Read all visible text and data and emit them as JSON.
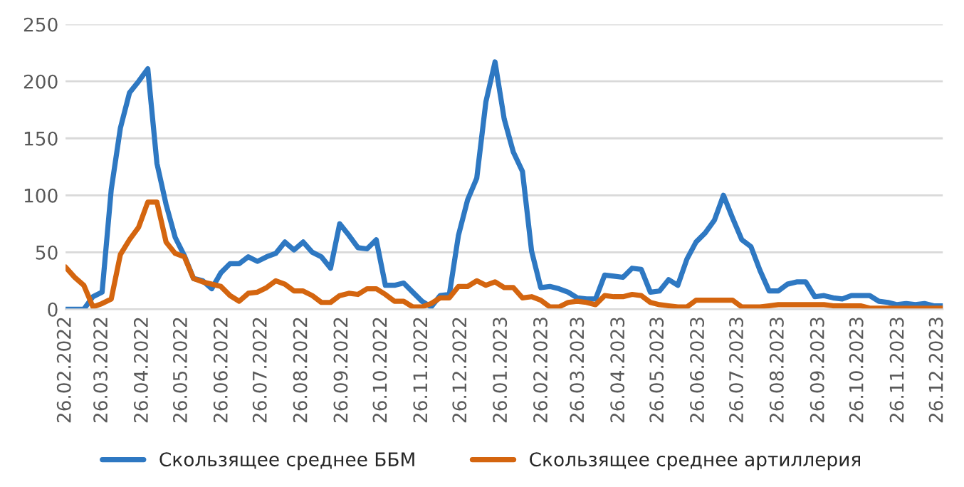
{
  "chart_data": {
    "type": "line",
    "x": [
      "2022-02-26",
      "2022-03-05",
      "2022-03-12",
      "2022-03-19",
      "2022-03-26",
      "2022-04-02",
      "2022-04-09",
      "2022-04-16",
      "2022-04-23",
      "2022-04-30",
      "2022-05-07",
      "2022-05-14",
      "2022-05-21",
      "2022-05-28",
      "2022-06-04",
      "2022-06-11",
      "2022-06-18",
      "2022-06-25",
      "2022-07-02",
      "2022-07-09",
      "2022-07-16",
      "2022-07-23",
      "2022-07-30",
      "2022-08-06",
      "2022-08-13",
      "2022-08-20",
      "2022-08-27",
      "2022-09-03",
      "2022-09-10",
      "2022-09-17",
      "2022-09-24",
      "2022-10-01",
      "2022-10-08",
      "2022-10-15",
      "2022-10-22",
      "2022-10-29",
      "2022-11-05",
      "2022-11-12",
      "2022-11-19",
      "2022-11-26",
      "2022-12-03",
      "2022-12-10",
      "2022-12-17",
      "2022-12-24",
      "2022-12-31",
      "2023-01-07",
      "2023-01-14",
      "2023-01-21",
      "2023-01-28",
      "2023-02-04",
      "2023-02-11",
      "2023-02-18",
      "2023-02-25",
      "2023-03-04",
      "2023-03-11",
      "2023-03-18",
      "2023-03-25",
      "2023-04-01",
      "2023-04-08",
      "2023-04-15",
      "2023-04-22",
      "2023-04-29",
      "2023-05-06",
      "2023-05-13",
      "2023-05-20",
      "2023-05-27",
      "2023-06-03",
      "2023-06-10",
      "2023-06-17",
      "2023-06-24",
      "2023-07-01",
      "2023-07-08",
      "2023-07-15",
      "2023-07-22",
      "2023-07-29",
      "2023-08-05",
      "2023-08-12",
      "2023-08-19",
      "2023-08-26",
      "2023-09-02",
      "2023-09-09",
      "2023-09-16",
      "2023-09-23",
      "2023-09-30",
      "2023-10-07",
      "2023-10-14",
      "2023-10-21",
      "2023-10-28",
      "2023-11-04",
      "2023-11-11",
      "2023-11-18",
      "2023-11-25",
      "2023-12-02",
      "2023-12-09",
      "2023-12-16",
      "2023-12-23",
      "2023-12-30"
    ],
    "series": [
      {
        "name": "Скользящее среднее ББМ",
        "color": "#2e78c2",
        "values": [
          0,
          0,
          0,
          11,
          15,
          105,
          159,
          190,
          200,
          211,
          128,
          92,
          63,
          47,
          27,
          25,
          18,
          32,
          40,
          40,
          46,
          42,
          46,
          49,
          59,
          52,
          59,
          50,
          46,
          36,
          75,
          65,
          54,
          53,
          61,
          21,
          21,
          23,
          15,
          7,
          2,
          12,
          13,
          65,
          96,
          115,
          182,
          217,
          167,
          138,
          121,
          51,
          19,
          20,
          18,
          15,
          10,
          9,
          9,
          30,
          29,
          28,
          36,
          35,
          15,
          16,
          26,
          21,
          44,
          59,
          67,
          78,
          100,
          80,
          61,
          55,
          34,
          16,
          16,
          22,
          24,
          24,
          11,
          12,
          10,
          9,
          12,
          12,
          12,
          7,
          6,
          4,
          5,
          4,
          5,
          3,
          3
        ]
      },
      {
        "name": "Скользящее среднее артиллерия",
        "color": "#d4650f",
        "values": [
          37,
          28,
          21,
          2,
          5,
          9,
          48,
          61,
          72,
          94,
          94,
          59,
          49,
          46,
          27,
          24,
          22,
          20,
          12,
          7,
          14,
          15,
          19,
          25,
          22,
          16,
          16,
          12,
          6,
          6,
          12,
          14,
          13,
          18,
          18,
          13,
          7,
          7,
          2,
          2,
          5,
          10,
          10,
          20,
          20,
          25,
          21,
          24,
          19,
          19,
          10,
          11,
          8,
          2,
          2,
          6,
          7,
          6,
          4,
          12,
          11,
          11,
          13,
          12,
          6,
          4,
          3,
          2,
          2,
          8,
          8,
          8,
          8,
          8,
          2,
          2,
          2,
          3,
          4,
          4,
          4,
          4,
          4,
          4,
          3,
          3,
          3,
          3,
          1,
          1,
          1,
          1,
          1,
          1,
          1,
          1,
          1
        ]
      }
    ],
    "xlim": [
      "2022-02-26",
      "2023-12-30"
    ],
    "xticks": [
      {
        "value": "2022-02-26",
        "label": "26.02.2022"
      },
      {
        "value": "2022-03-26",
        "label": "26.03.2022"
      },
      {
        "value": "2022-04-26",
        "label": "26.04.2022"
      },
      {
        "value": "2022-05-26",
        "label": "26.05.2022"
      },
      {
        "value": "2022-06-26",
        "label": "26.06.2022"
      },
      {
        "value": "2022-07-26",
        "label": "26.07.2022"
      },
      {
        "value": "2022-08-26",
        "label": "26.08.2022"
      },
      {
        "value": "2022-09-26",
        "label": "26.09.2022"
      },
      {
        "value": "2022-10-26",
        "label": "26.10.2022"
      },
      {
        "value": "2022-11-26",
        "label": "26.11.2022"
      },
      {
        "value": "2022-12-26",
        "label": "26.12.2022"
      },
      {
        "value": "2023-01-26",
        "label": "26.01.2023"
      },
      {
        "value": "2023-02-26",
        "label": "26.02.2023"
      },
      {
        "value": "2023-03-26",
        "label": "26.03.2023"
      },
      {
        "value": "2023-04-26",
        "label": "26.04.2023"
      },
      {
        "value": "2023-05-26",
        "label": "26.05.2023"
      },
      {
        "value": "2023-06-26",
        "label": "26.06.2023"
      },
      {
        "value": "2023-07-26",
        "label": "26.07.2023"
      },
      {
        "value": "2023-08-26",
        "label": "26.08.2023"
      },
      {
        "value": "2023-09-26",
        "label": "26.09.2023"
      },
      {
        "value": "2023-10-26",
        "label": "26.10.2023"
      },
      {
        "value": "2023-11-26",
        "label": "26.11.2023"
      },
      {
        "value": "2023-12-26",
        "label": "26.12.2023"
      }
    ],
    "ylim": [
      0,
      250
    ],
    "yticks": [
      0,
      50,
      100,
      150,
      200,
      250
    ],
    "grid": "y",
    "legend": "bottom",
    "line_style": "solid"
  }
}
